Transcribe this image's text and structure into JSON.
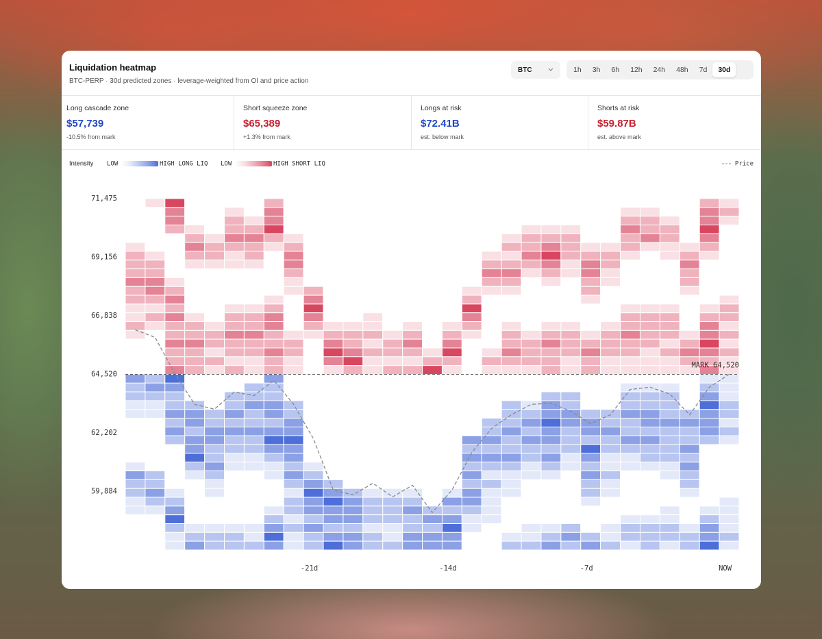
{
  "header": {
    "title": "Liquidation heatmap",
    "subtitle": "BTC-PERP · 30d predicted zones · leverage-weighted from OI and price action"
  },
  "controls": {
    "symbol": "BTC",
    "timeframes": [
      "1h",
      "3h",
      "6h",
      "12h",
      "24h",
      "48h",
      "7d",
      "30d"
    ],
    "selected": 7
  },
  "stats": [
    {
      "label": "Long cascade zone",
      "value": "$57,739",
      "note": "-10.5% from mark",
      "color": "#1f47c8"
    },
    {
      "label": "Short squeeze zone",
      "value": "$65,389",
      "note": "+1.3% from mark",
      "color": "#c8202f"
    },
    {
      "label": "Longs at risk",
      "value": "$72.41B",
      "note": "est. below mark",
      "color": "#1f47c8"
    },
    {
      "label": "Shorts at risk",
      "value": "$59.87B",
      "note": "est. above mark",
      "color": "#c8202f"
    }
  ],
  "legend": {
    "title": "Intensity",
    "long_low": "LOW",
    "long_high": "HIGH LONG LIQ",
    "short_low": "LOW",
    "short_high": "HIGH SHORT LIQ"
  },
  "chart_data": {
    "type": "heatmap",
    "categories": [
      null,
      null,
      null,
      null,
      null,
      null,
      null,
      null,
      null,
      "-21d",
      null,
      null,
      null,
      null,
      null,
      null,
      "-14d",
      null,
      null,
      null,
      null,
      null,
      null,
      "-7d",
      null,
      null,
      null,
      null,
      null,
      null,
      "NOW"
    ],
    "ylim": [
      57570,
      71470
    ],
    "yticks": [
      {
        "value": 71475,
        "label": "71,475"
      },
      {
        "value": 69156,
        "label": "69,156"
      },
      {
        "value": 66838,
        "label": "66,838"
      },
      {
        "value": 64520,
        "label": "64,520"
      },
      {
        "value": 62202,
        "label": "62,202"
      },
      {
        "value": 59884,
        "label": "59,884"
      }
    ],
    "grid": true,
    "mark": {
      "value": 64520,
      "label": "MARK 64,520"
    },
    "short_colors": [
      "#ffffff",
      "#f9e0e5",
      "#f0b3be",
      "#e58396",
      "#d8465f"
    ],
    "long_colors": [
      "#ffffff",
      "#e3e9f9",
      "#b7c5f0",
      "#8ba0e5",
      "#4e6fd9"
    ],
    "cells": [
      [
        0,
        0,
        0,
        0,
        0,
        1,
        2,
        2,
        2,
        3,
        2,
        2,
        1,
        1,
        2,
        1,
        0,
        0,
        0,
        0,
        3,
        2,
        2,
        1,
        1,
        0,
        0,
        0,
        0,
        0,
        1,
        3,
        2,
        2,
        1,
        1,
        0,
        0,
        0,
        0
      ],
      [
        1,
        0,
        0,
        0,
        0,
        0,
        1,
        2,
        2,
        3,
        3,
        2,
        1,
        2,
        1,
        0,
        0,
        0,
        0,
        0,
        2,
        3,
        2,
        1,
        1,
        0,
        0,
        0,
        0,
        0,
        0,
        2,
        2,
        3,
        2,
        1,
        0,
        0,
        0,
        0
      ],
      [
        4,
        3,
        3,
        2,
        0,
        0,
        0,
        0,
        0,
        1,
        2,
        3,
        2,
        3,
        2,
        2,
        3,
        2,
        2,
        3,
        4,
        3,
        2,
        2,
        3,
        2,
        3,
        2,
        0,
        0,
        0,
        0,
        0,
        1,
        2,
        3,
        4,
        2,
        1,
        1
      ],
      [
        0,
        0,
        0,
        1,
        2,
        3,
        2,
        1,
        0,
        0,
        0,
        0,
        0,
        1,
        2,
        2,
        3,
        2,
        2,
        2,
        0,
        0,
        0,
        2,
        3,
        3,
        2,
        3,
        3,
        4,
        2,
        1,
        0,
        0,
        0,
        0,
        0,
        1,
        2,
        3
      ],
      [
        0,
        0,
        0,
        0,
        1,
        2,
        2,
        1,
        0,
        0,
        0,
        0,
        0,
        0,
        1,
        2,
        2,
        1,
        2,
        1,
        0,
        0,
        0,
        0,
        2,
        2,
        3,
        3,
        2,
        2,
        3,
        2,
        1,
        1,
        0,
        0,
        0,
        1,
        2,
        2
      ],
      [
        0,
        1,
        2,
        2,
        3,
        2,
        1,
        1,
        0,
        0,
        0,
        0,
        1,
        2,
        2,
        3,
        2,
        2,
        1,
        2,
        0,
        0,
        2,
        2,
        3,
        2,
        3,
        2,
        2,
        1,
        1,
        0,
        0,
        0,
        0,
        0,
        0,
        1,
        2,
        2
      ],
      [
        0,
        0,
        1,
        2,
        3,
        2,
        2,
        1,
        0,
        0,
        0,
        0,
        1,
        2,
        2,
        3,
        2,
        2,
        1,
        1,
        0,
        2,
        2,
        3,
        2,
        2,
        3,
        2,
        2,
        1,
        1,
        0,
        0,
        0,
        0,
        0,
        0,
        1,
        1,
        2
      ],
      [
        2,
        3,
        3,
        4,
        2,
        1,
        0,
        0,
        0,
        0,
        0,
        1,
        2,
        3,
        3,
        2,
        2,
        3,
        2,
        2,
        3,
        2,
        2,
        3,
        3,
        2,
        3,
        4,
        3,
        2,
        1,
        1,
        0,
        0,
        0,
        1,
        2,
        3,
        4,
        3
      ],
      [
        0,
        0,
        0,
        0,
        1,
        2,
        3,
        3,
        2,
        1,
        1,
        0,
        0,
        0,
        0,
        1,
        2,
        2,
        1,
        1,
        0,
        0,
        0,
        2,
        2,
        3,
        3,
        4,
        3,
        3,
        2,
        3,
        2,
        1,
        2,
        2,
        1,
        2,
        1,
        1
      ],
      [
        0,
        0,
        0,
        0,
        0,
        0,
        0,
        0,
        0,
        0,
        2,
        3,
        4,
        3,
        2,
        1,
        0,
        0,
        0,
        0,
        0,
        0,
        0,
        0,
        0,
        0,
        0,
        0,
        0,
        0,
        1,
        2,
        3,
        4,
        3,
        3,
        2,
        3,
        2,
        2
      ],
      [
        0,
        0,
        0,
        0,
        0,
        0,
        0,
        0,
        0,
        0,
        0,
        0,
        0,
        0,
        1,
        2,
        3,
        4,
        3,
        1,
        0,
        0,
        0,
        0,
        0,
        0,
        0,
        0,
        0,
        0,
        0,
        0,
        2,
        3,
        4,
        3,
        3,
        2,
        3,
        4
      ],
      [
        0,
        0,
        0,
        0,
        0,
        0,
        0,
        0,
        0,
        0,
        0,
        0,
        0,
        0,
        1,
        2,
        2,
        3,
        4,
        2,
        0,
        0,
        0,
        0,
        0,
        0,
        0,
        0,
        0,
        0,
        0,
        0,
        0,
        2,
        3,
        3,
        3,
        2,
        3,
        3
      ],
      [
        0,
        0,
        0,
        0,
        0,
        0,
        0,
        0,
        0,
        0,
        0,
        0,
        0,
        1,
        1,
        2,
        1,
        2,
        1,
        1,
        0,
        0,
        0,
        0,
        0,
        0,
        0,
        0,
        0,
        0,
        0,
        0,
        0,
        1,
        2,
        2,
        2,
        1,
        2,
        2
      ],
      [
        0,
        0,
        0,
        0,
        0,
        0,
        0,
        0,
        0,
        0,
        0,
        0,
        0,
        0,
        0,
        1,
        2,
        2,
        1,
        2,
        0,
        0,
        0,
        0,
        0,
        0,
        0,
        0,
        0,
        0,
        0,
        0,
        0,
        1,
        2,
        2,
        2,
        1,
        1,
        2
      ],
      [
        0,
        0,
        0,
        0,
        0,
        0,
        0,
        0,
        0,
        0,
        0,
        0,
        0,
        0,
        1,
        2,
        3,
        2,
        1,
        2,
        0,
        0,
        0,
        0,
        0,
        0,
        0,
        0,
        0,
        0,
        0,
        0,
        0,
        1,
        2,
        3,
        2,
        2,
        3,
        3
      ],
      [
        0,
        0,
        0,
        0,
        0,
        0,
        0,
        0,
        0,
        0,
        0,
        0,
        0,
        0,
        0,
        0,
        0,
        1,
        2,
        4,
        0,
        0,
        0,
        0,
        0,
        0,
        0,
        0,
        0,
        0,
        0,
        0,
        0,
        0,
        0,
        2,
        3,
        2,
        3,
        3
      ],
      [
        0,
        0,
        0,
        0,
        0,
        0,
        0,
        0,
        0,
        0,
        0,
        0,
        0,
        0,
        1,
        2,
        3,
        4,
        2,
        1,
        0,
        0,
        0,
        0,
        0,
        0,
        0,
        0,
        0,
        0,
        0,
        0,
        0,
        1,
        3,
        2,
        3,
        4,
        3,
        3
      ],
      [
        0,
        0,
        0,
        0,
        0,
        0,
        0,
        0,
        0,
        0,
        1,
        2,
        4,
        3,
        2,
        1,
        0,
        0,
        0,
        0,
        0,
        0,
        0,
        0,
        0,
        0,
        0,
        3,
        2,
        3,
        2,
        3,
        2,
        3,
        3,
        2,
        1,
        1,
        0,
        0
      ],
      [
        0,
        0,
        0,
        0,
        0,
        0,
        1,
        2,
        3,
        2,
        1,
        0,
        0,
        0,
        0,
        0,
        0,
        1,
        2,
        1,
        0,
        0,
        0,
        0,
        0,
        2,
        2,
        3,
        2,
        3,
        2,
        1,
        2,
        1,
        1,
        1,
        1,
        0,
        0,
        0
      ],
      [
        0,
        0,
        0,
        0,
        1,
        2,
        1,
        2,
        3,
        2,
        1,
        0,
        0,
        0,
        1,
        2,
        2,
        3,
        2,
        1,
        0,
        0,
        0,
        2,
        2,
        2,
        3,
        2,
        2,
        3,
        2,
        1,
        1,
        1,
        0,
        0,
        0,
        0,
        1,
        2
      ],
      [
        0,
        0,
        0,
        1,
        2,
        2,
        3,
        2,
        1,
        0,
        0,
        0,
        0,
        0,
        0,
        1,
        2,
        2,
        2,
        1,
        0,
        0,
        0,
        1,
        2,
        3,
        2,
        3,
        2,
        2,
        1,
        1,
        0,
        0,
        0,
        0,
        0,
        1,
        1,
        2
      ],
      [
        0,
        0,
        0,
        1,
        2,
        3,
        4,
        3,
        2,
        1,
        0,
        0,
        0,
        0,
        1,
        2,
        3,
        2,
        2,
        2,
        0,
        0,
        2,
        3,
        3,
        4,
        3,
        3,
        2,
        3,
        2,
        1,
        0,
        0,
        0,
        0,
        0,
        1,
        2,
        3
      ],
      [
        0,
        0,
        0,
        1,
        2,
        2,
        2,
        1,
        1,
        0,
        0,
        0,
        0,
        0,
        1,
        2,
        2,
        2,
        1,
        1,
        0,
        0,
        2,
        2,
        3,
        3,
        2,
        2,
        2,
        1,
        1,
        0,
        0,
        0,
        0,
        0,
        0,
        2,
        3,
        2
      ],
      [
        0,
        0,
        0,
        0,
        0,
        1,
        2,
        3,
        3,
        2,
        2,
        1,
        0,
        0,
        0,
        1,
        2,
        3,
        2,
        2,
        0,
        0,
        0,
        0,
        2,
        3,
        3,
        2,
        4,
        3,
        2,
        3,
        2,
        2,
        1,
        0,
        0,
        0,
        2,
        3
      ],
      [
        0,
        0,
        0,
        0,
        0,
        1,
        2,
        2,
        1,
        1,
        0,
        0,
        0,
        0,
        1,
        2,
        2,
        2,
        1,
        1,
        0,
        0,
        0,
        0,
        2,
        2,
        3,
        2,
        2,
        1,
        1,
        2,
        1,
        1,
        0,
        0,
        0,
        1,
        1,
        2
      ],
      [
        0,
        1,
        2,
        3,
        2,
        2,
        1,
        0,
        0,
        0,
        0,
        0,
        1,
        2,
        2,
        3,
        2,
        2,
        1,
        1,
        0,
        1,
        2,
        2,
        3,
        2,
        2,
        3,
        2,
        1,
        1,
        0,
        0,
        0,
        0,
        0,
        1,
        2,
        2,
        1
      ],
      [
        0,
        1,
        2,
        2,
        3,
        1,
        0,
        0,
        0,
        0,
        0,
        0,
        1,
        2,
        2,
        2,
        2,
        1,
        1,
        1,
        0,
        1,
        2,
        2,
        3,
        3,
        2,
        3,
        2,
        2,
        1,
        0,
        0,
        0,
        0,
        0,
        1,
        2,
        2,
        2
      ],
      [
        0,
        0,
        1,
        2,
        2,
        1,
        1,
        0,
        0,
        0,
        0,
        0,
        1,
        2,
        2,
        2,
        1,
        2,
        1,
        1,
        0,
        1,
        2,
        2,
        2,
        3,
        2,
        2,
        2,
        2,
        1,
        1,
        0,
        0,
        0,
        1,
        1,
        2,
        2,
        1
      ],
      [
        0,
        0,
        0,
        0,
        0,
        1,
        2,
        3,
        2,
        2,
        1,
        0,
        0,
        0,
        0,
        1,
        2,
        3,
        2,
        1,
        0,
        0,
        0,
        0,
        2,
        3,
        2,
        2,
        3,
        2,
        3,
        2,
        2,
        1,
        0,
        0,
        0,
        1,
        2,
        2
      ],
      [
        2,
        3,
        3,
        4,
        3,
        2,
        1,
        0,
        0,
        0,
        0,
        0,
        1,
        2,
        3,
        3,
        4,
        3,
        2,
        3,
        1,
        2,
        3,
        4,
        3,
        3,
        3,
        2,
        0,
        0,
        0,
        0,
        0,
        0,
        0,
        1,
        2,
        3,
        3,
        4
      ],
      [
        1,
        2,
        1,
        0,
        0,
        0,
        0,
        0,
        0,
        0,
        0,
        1,
        2,
        2,
        1,
        2,
        1,
        2,
        1,
        1,
        1,
        1,
        1,
        2,
        2,
        1,
        2,
        1,
        0,
        0,
        0,
        0,
        0,
        0,
        1,
        1,
        1,
        1,
        2,
        1
      ]
    ],
    "price": {
      "name": "Price",
      "color": "#8a8a8a",
      "values": [
        66280,
        65980,
        64550,
        63330,
        63140,
        63820,
        63680,
        64280,
        63330,
        61970,
        59940,
        59750,
        60210,
        59670,
        60130,
        59050,
        59940,
        61430,
        62380,
        62920,
        63330,
        63380,
        63060,
        62570,
        62920,
        63920,
        64010,
        63740,
        62920,
        64010,
        64520
      ]
    }
  }
}
